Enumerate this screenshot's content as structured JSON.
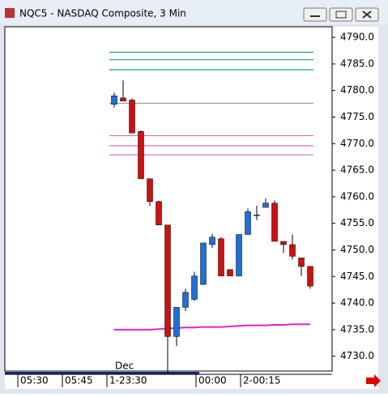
{
  "window_title": "NQC5 - NASDAQ Composite, 3 Min",
  "chart_data": {
    "type": "candlestick",
    "open": [
      4777.4,
      4778.6,
      4778.2,
      4772.3,
      4763.4,
      4759.1,
      4754.7,
      4733.7,
      4739.2,
      4740.7,
      4743.5,
      4751.0,
      4752.1,
      4746.3,
      4745.1,
      4752.9,
      4756.6,
      4758.0,
      4758.8,
      4751.6,
      4751.0,
      4748.5,
      4746.9
    ],
    "high": [
      4779.6,
      4781.9,
      4778.5,
      4772.5,
      4763.4,
      4759.3,
      4754.7,
      4739.2,
      4742.7,
      4745.9,
      4751.3,
      4753.0,
      4752.4,
      4746.3,
      4752.9,
      4757.8,
      4758.3,
      4759.7,
      4759.3,
      4751.6,
      4752.9,
      4748.5,
      4746.9
    ],
    "low": [
      4776.8,
      4778.0,
      4772.0,
      4763.4,
      4758.3,
      4754.7,
      4726.9,
      4731.9,
      4738.5,
      4740.4,
      4743.5,
      4750.4,
      4745.1,
      4745.1,
      4745.1,
      4752.9,
      4755.6,
      4758.0,
      4751.6,
      4749.4,
      4748.2,
      4745.1,
      4742.7
    ],
    "close": [
      4779.0,
      4778.0,
      4772.0,
      4763.4,
      4759.1,
      4754.7,
      4733.7,
      4739.2,
      4742.0,
      4745.1,
      4751.3,
      4752.4,
      4745.1,
      4745.1,
      4752.9,
      4757.2,
      4756.6,
      4758.8,
      4751.6,
      4751.0,
      4748.8,
      4746.9,
      4743.2
    ],
    "up_color": "#1f6fd6",
    "down_color": "#cc1111",
    "levels": [
      {
        "value": 4787.2,
        "color": "#20a060"
      },
      {
        "value": 4785.8,
        "color": "#1a9a9a"
      },
      {
        "value": 4783.9,
        "color": "#20a060"
      },
      {
        "value": 4777.6,
        "color": "#999999"
      },
      {
        "value": 4771.5,
        "color": "#d070c0"
      },
      {
        "value": 4769.6,
        "color": "#e060b0"
      },
      {
        "value": 4767.9,
        "color": "#c070c0"
      }
    ],
    "overlay": {
      "color": "#e020d0",
      "values": [
        4735.0,
        4735.0,
        4735.0,
        4735.0,
        4735.0,
        4735.1,
        4735.2,
        4735.3,
        4735.4,
        4735.4,
        4735.5,
        4735.5,
        4735.5,
        4735.6,
        4735.7,
        4735.8,
        4735.8,
        4735.8,
        4735.9,
        4735.9,
        4736.0,
        4736.0,
        4736.0
      ]
    },
    "ylim": [
      4727.2,
      4792.0
    ],
    "yticks": [
      {
        "value": 4730,
        "label": "4730.0"
      },
      {
        "value": 4735,
        "label": "4735.0"
      },
      {
        "value": 4740,
        "label": "4740.0"
      },
      {
        "value": 4745,
        "label": "4745.0"
      },
      {
        "value": 4750,
        "label": "4750.0"
      },
      {
        "value": 4755,
        "label": "4755.0"
      },
      {
        "value": 4760,
        "label": "4760.0"
      },
      {
        "value": 4765,
        "label": "4765.0"
      },
      {
        "value": 4770,
        "label": "4770.0"
      },
      {
        "value": 4775,
        "label": "4775.0"
      },
      {
        "value": 4780,
        "label": "4780.0"
      },
      {
        "value": 4785,
        "label": "4785.0"
      },
      {
        "value": 4790,
        "label": "4790.0"
      }
    ],
    "xticks": [
      {
        "value": -10,
        "label": "05:30"
      },
      {
        "value": -5,
        "label": "05:45"
      },
      {
        "value": 0,
        "label": "1-23:30"
      },
      {
        "value": 10,
        "label": "00:00"
      },
      {
        "value": 15,
        "label": "2-00:15"
      }
    ],
    "annotations": [
      {
        "value": 0,
        "label": "Dec"
      }
    ]
  }
}
